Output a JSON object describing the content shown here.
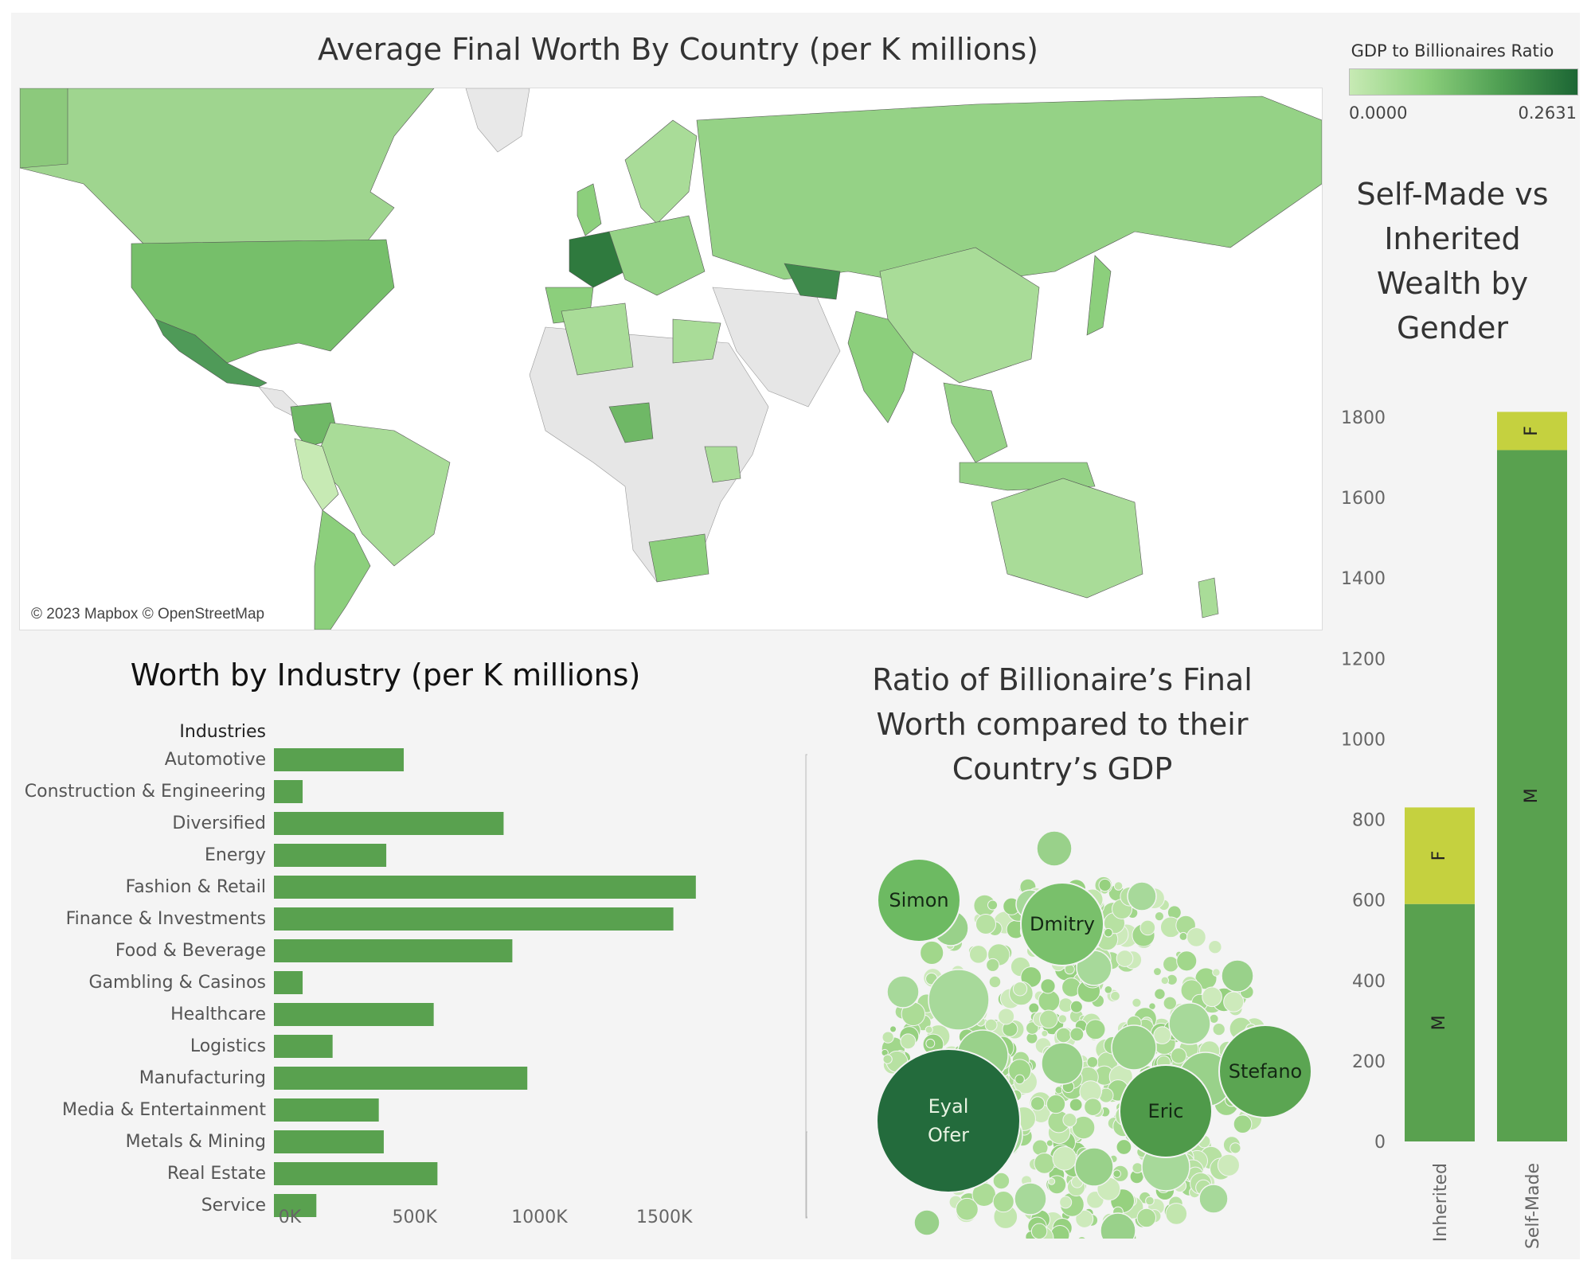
{
  "map": {
    "title": "Average Final Worth By Country (per K millions)",
    "attribution": "© 2023 Mapbox © OpenStreetMap"
  },
  "legend": {
    "title": "GDP to Billionaires Ratio",
    "min_label": "0.0000",
    "max_label": "0.2631",
    "colors": [
      "#c7eab4",
      "#1c6634"
    ]
  },
  "industry": {
    "title": "Worth by Industry (per K millions)"
  },
  "bubble": {
    "title_lines": [
      "Ratio of Billionaire’s Final",
      "Worth compared to their",
      "Country’s GDP"
    ]
  },
  "gender": {
    "title_lines": [
      "Self-Made vs",
      "Inherited",
      "Wealth by",
      "Gender"
    ]
  },
  "chart_data": [
    {
      "type": "bar",
      "orientation": "horizontal",
      "header": "Industries",
      "categories": [
        "Automotive",
        "Construction & Engineering",
        "Diversified",
        "Energy",
        "Fashion & Retail",
        "Finance & Investments",
        "Food & Beverage",
        "Gambling & Casinos",
        "Healthcare",
        "Logistics",
        "Manufacturing",
        "Media & Entertainment",
        "Metals & Mining",
        "Real Estate",
        "Service"
      ],
      "values": [
        520,
        115,
        920,
        450,
        1690,
        1600,
        955,
        115,
        640,
        235,
        1015,
        420,
        440,
        655,
        170
      ],
      "xticks": [
        "0K",
        "500K",
        "1000K",
        "1500K"
      ],
      "xtick_values": [
        0,
        500,
        1000,
        1500
      ],
      "xlim": [
        0,
        1850
      ],
      "color": "#59a14f"
    },
    {
      "type": "bubble",
      "labeled_bubbles": [
        {
          "label": [
            "Eyal",
            "Ofer"
          ],
          "size": 10,
          "color": "#236b3c"
        },
        {
          "label": [
            "Eric"
          ],
          "size": 4.2,
          "color": "#4f9a4a"
        },
        {
          "label": [
            "Stefano"
          ],
          "size": 4.2,
          "color": "#5ba552"
        },
        {
          "label": [
            "Simon"
          ],
          "size": 3.4,
          "color": "#6dba62"
        },
        {
          "label": [
            "Dmitry"
          ],
          "size": 3.4,
          "color": "#79c06b"
        }
      ],
      "colors": [
        "#c6e8b2",
        "#1c6634"
      ]
    },
    {
      "type": "bar",
      "stacked": true,
      "categories": [
        "Inherited",
        "Self-Made"
      ],
      "series": [
        {
          "name": "M",
          "values": [
            590,
            1718
          ],
          "color": "#59a14f"
        },
        {
          "name": "F",
          "values": [
            240,
            95
          ],
          "color": "#c5d13f"
        }
      ],
      "yticks": [
        0,
        200,
        400,
        600,
        800,
        1000,
        1200,
        1400,
        1600,
        1800
      ],
      "ylim": [
        0,
        1800
      ]
    }
  ]
}
